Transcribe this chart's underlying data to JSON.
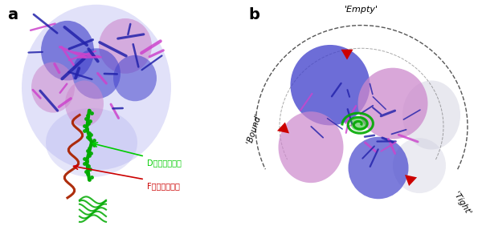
{
  "fig_width": 6.0,
  "fig_height": 2.87,
  "dpi": 100,
  "background": "#ffffff",
  "panel_a_label": "a",
  "panel_b_label": "b",
  "label_fontsize": 14,
  "label_fontweight": "bold",
  "annotation_green": "Dサブユニット",
  "annotation_red": "Fサブユニット",
  "annotation_green_color": "#00cc00",
  "annotation_red_color": "#cc0000",
  "annotation_fontsize": 7,
  "label_empty": "'Empty'",
  "label_bound": "'Bound'",
  "label_tight": "'Tight'",
  "label_state_fontsize": 8,
  "arrow_color": "#cc0000",
  "dashed_circle_color": "#555555",
  "blue_color": "#4444cc",
  "pink_color": "#cc88cc",
  "light_blue": "#8888dd",
  "green_color": "#00aa00",
  "dark_red": "#aa2200",
  "ribbon_blue": "#2222aa",
  "ribbon_pink": "#cc44cc"
}
